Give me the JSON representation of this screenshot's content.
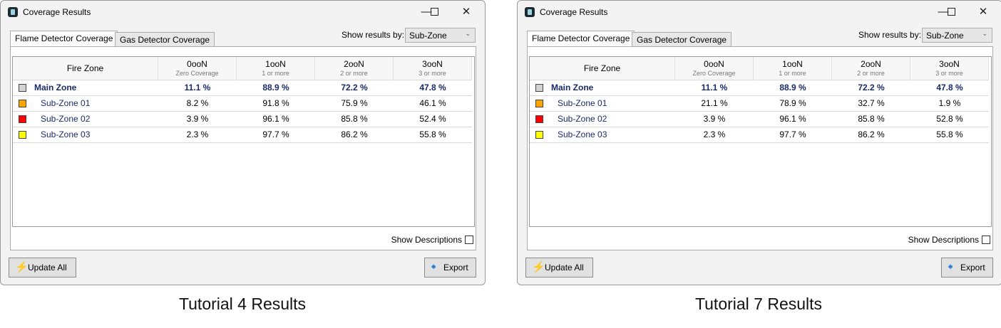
{
  "windows": [
    {
      "title": "Coverage Results",
      "tabs": [
        {
          "label": "Flame Detector Coverage",
          "active": true
        },
        {
          "label": "Gas Detector Coverage",
          "active": false
        }
      ],
      "show_results_by_label": "Show results by:",
      "show_results_by_value": "Sub-Zone",
      "columns": [
        {
          "title": "Fire Zone",
          "sub": ""
        },
        {
          "title": "0ooN",
          "sub": "Zero Coverage"
        },
        {
          "title": "1ooN",
          "sub": "1 or more"
        },
        {
          "title": "2ooN",
          "sub": "2 or more"
        },
        {
          "title": "3ooN",
          "sub": "3 or more"
        }
      ],
      "rows": [
        {
          "zone": "Main Zone",
          "color": "#d3d3d3",
          "main": true,
          "values": [
            "11.1 %",
            "88.9 %",
            "72.2 %",
            "47.8 %"
          ]
        },
        {
          "zone": "Sub-Zone 01",
          "color": "#ffa500",
          "main": false,
          "values": [
            "8.2 %",
            "91.8 %",
            "75.9 %",
            "46.1 %"
          ]
        },
        {
          "zone": "Sub-Zone 02",
          "color": "#ff0000",
          "main": false,
          "values": [
            "3.9 %",
            "96.1 %",
            "85.8 %",
            "52.4 %"
          ]
        },
        {
          "zone": "Sub-Zone 03",
          "color": "#ffff00",
          "main": false,
          "values": [
            "2.3 %",
            "97.7 %",
            "86.2 %",
            "55.8 %"
          ]
        }
      ],
      "show_descriptions_label": "Show Descriptions",
      "show_descriptions_checked": false,
      "update_all_label": "Update All",
      "export_label": "Export",
      "caption": "Tutorial 4 Results"
    },
    {
      "title": "Coverage Results",
      "tabs": [
        {
          "label": "Flame Detector Coverage",
          "active": true
        },
        {
          "label": "Gas Detector Coverage",
          "active": false
        }
      ],
      "show_results_by_label": "Show results by:",
      "show_results_by_value": "Sub-Zone",
      "columns": [
        {
          "title": "Fire Zone",
          "sub": ""
        },
        {
          "title": "0ooN",
          "sub": "Zero Coverage"
        },
        {
          "title": "1ooN",
          "sub": "1 or more"
        },
        {
          "title": "2ooN",
          "sub": "2 or more"
        },
        {
          "title": "3ooN",
          "sub": "3 or more"
        }
      ],
      "rows": [
        {
          "zone": "Main Zone",
          "color": "#d3d3d3",
          "main": true,
          "values": [
            "11.1 %",
            "88.9 %",
            "72.2 %",
            "47.8 %"
          ]
        },
        {
          "zone": "Sub-Zone 01",
          "color": "#ffa500",
          "main": false,
          "values": [
            "21.1 %",
            "78.9 %",
            "32.7 %",
            "1.9 %"
          ]
        },
        {
          "zone": "Sub-Zone 02",
          "color": "#ff0000",
          "main": false,
          "values": [
            "3.9 %",
            "96.1 %",
            "85.8 %",
            "52.8 %"
          ]
        },
        {
          "zone": "Sub-Zone 03",
          "color": "#ffff00",
          "main": false,
          "values": [
            "2.3 %",
            "97.7 %",
            "86.2 %",
            "55.8 %"
          ]
        }
      ],
      "show_descriptions_label": "Show Descriptions",
      "show_descriptions_checked": false,
      "update_all_label": "Update All",
      "export_label": "Export",
      "caption": "Tutorial 7 Results"
    }
  ]
}
